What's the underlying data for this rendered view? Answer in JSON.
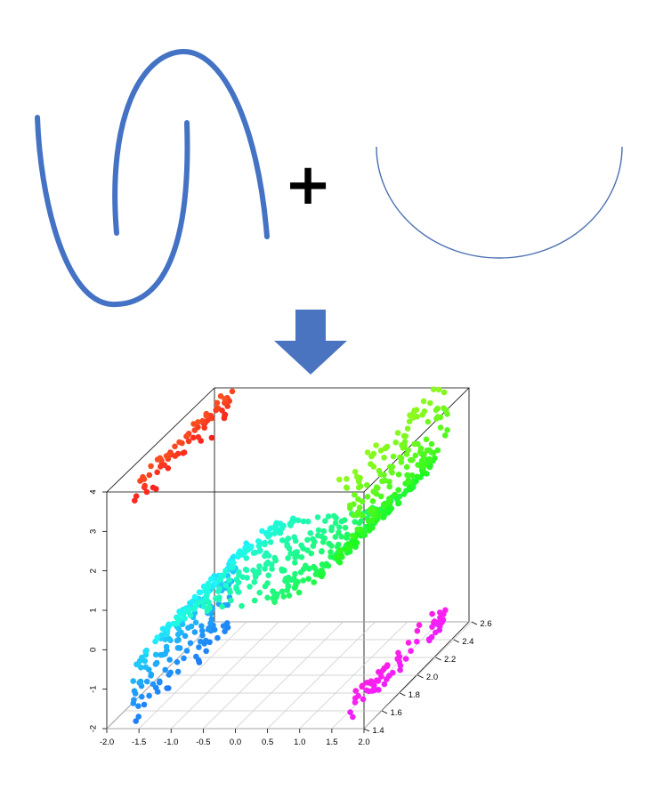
{
  "figure": {
    "operator_symbol": "+",
    "arrow_direction": "down",
    "curve_color": "#4472c4",
    "semicircle_color": "#4a6fb0",
    "arrow_color": "#4a74c0"
  },
  "chart_data": {
    "type": "scatter",
    "dimensions": 3,
    "title": "",
    "xlabel": "",
    "ylabel": "",
    "zlabel": "",
    "xlim": [
      -2.0,
      2.0
    ],
    "ylim": [
      1.4,
      2.6
    ],
    "zlim": [
      -2,
      4
    ],
    "x_ticks": [
      "-2.0",
      "-1.5",
      "-1.0",
      "-0.5",
      "0.0",
      "0.5",
      "1.0",
      "1.5",
      "2.0"
    ],
    "y_ticks": [
      "1.4",
      "1.6",
      "1.8",
      "2.0",
      "2.2",
      "2.4",
      "2.6"
    ],
    "z_ticks": [
      "-2",
      "-1",
      "0",
      "1",
      "2",
      "3",
      "4"
    ],
    "box": true,
    "grid_on_floor": true,
    "color_scale": "rainbow",
    "point_count": 1800
  }
}
